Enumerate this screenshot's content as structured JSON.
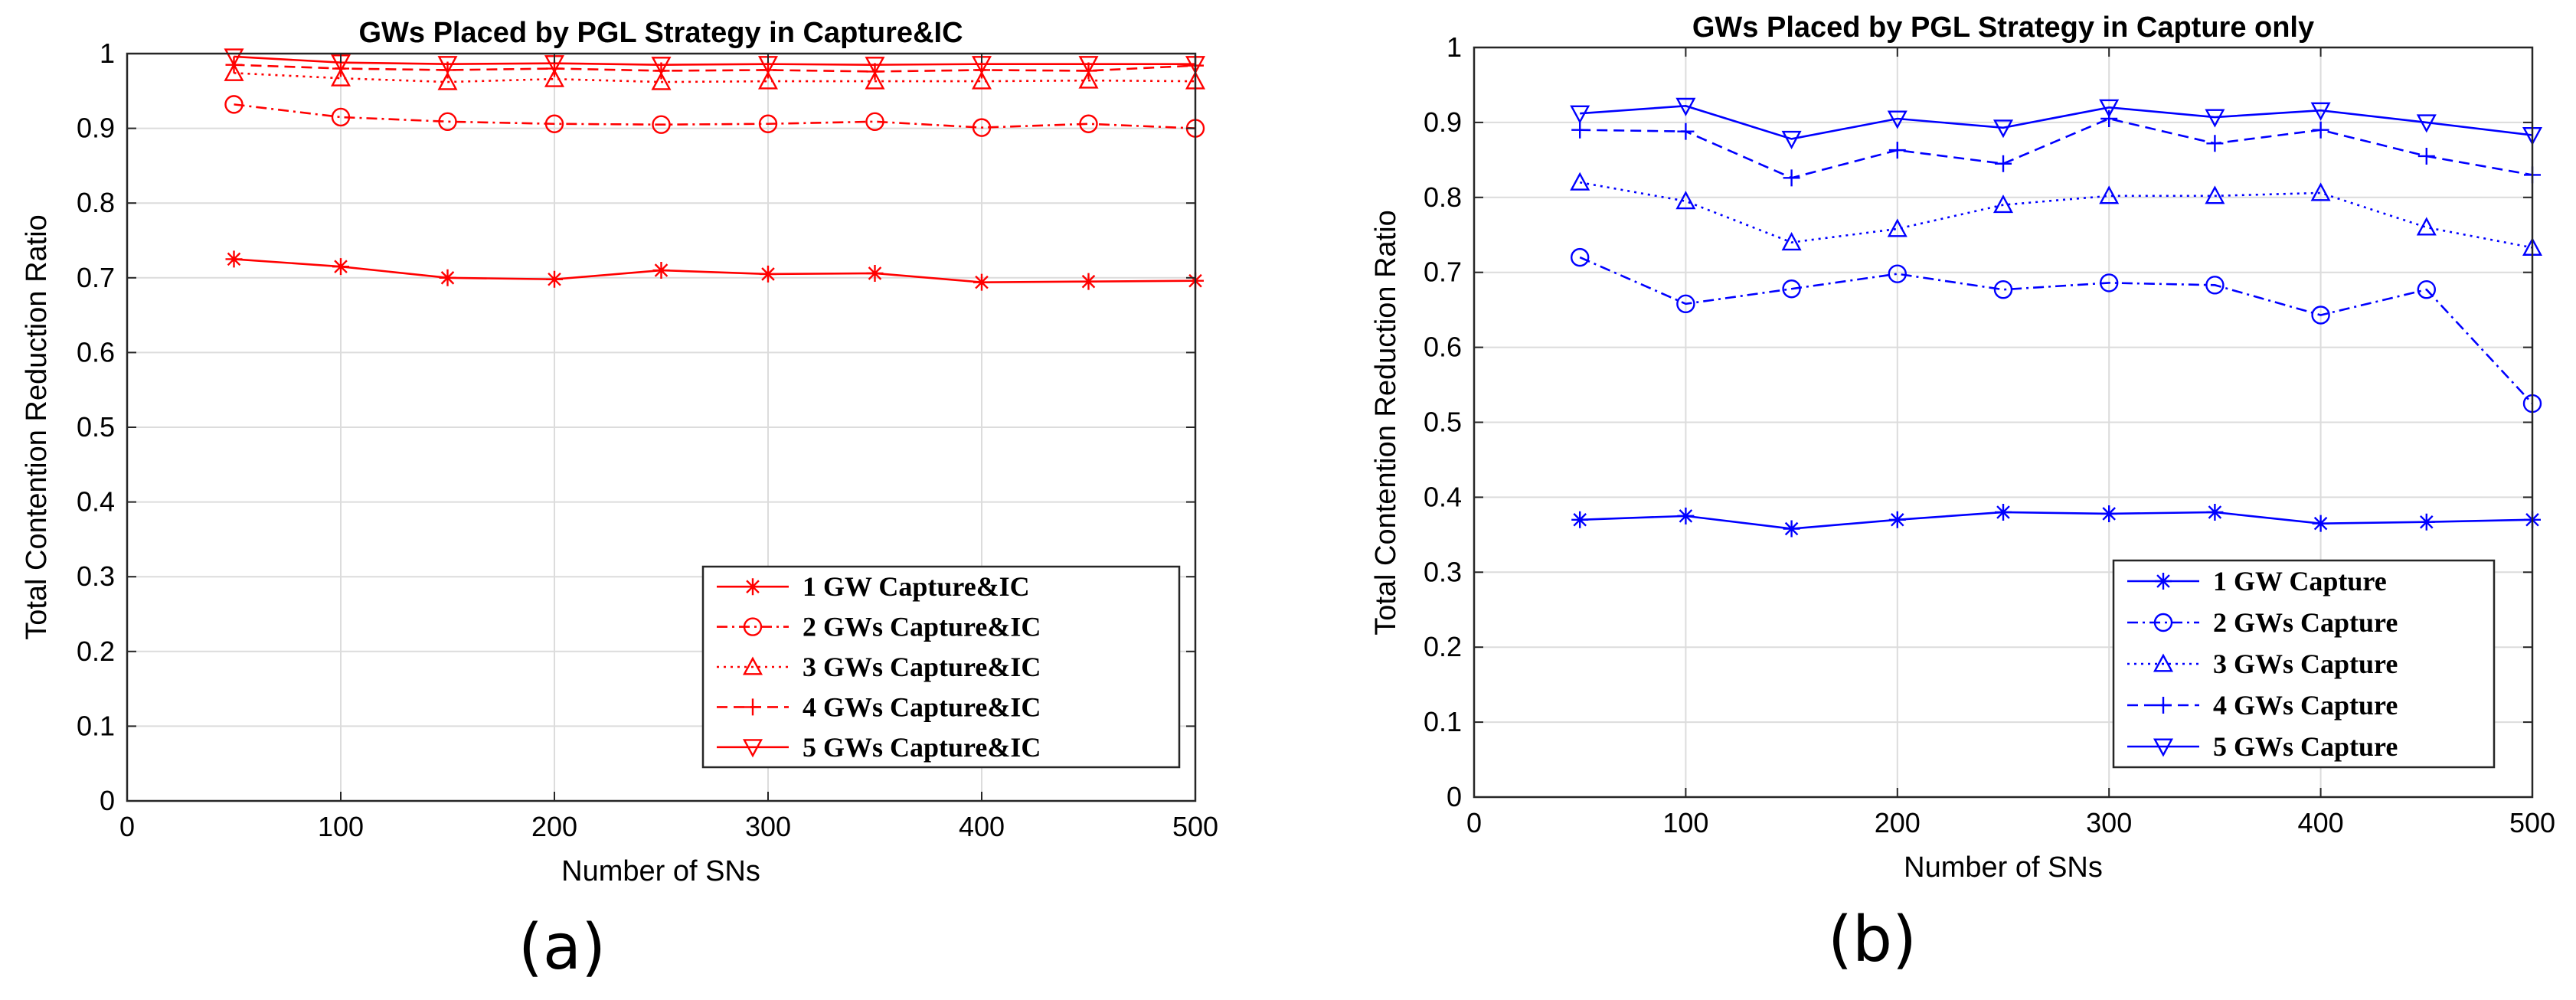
{
  "chart_data": [
    {
      "type": "line",
      "id": "a",
      "title": "GWs Placed by PGL Strategy in Capture&IC",
      "xlabel": "Number of SNs",
      "ylabel": "Total Contention Reduction Ratio",
      "panel_label": "(a)",
      "xlim": [
        0,
        500
      ],
      "ylim": [
        0,
        1
      ],
      "xticks": [
        "0",
        "100",
        "200",
        "300",
        "400",
        "500"
      ],
      "yticks": [
        "0",
        "0.1",
        "0.2",
        "0.3",
        "0.4",
        "0.5",
        "0.6",
        "0.7",
        "0.8",
        "0.9",
        "1"
      ],
      "grid": true,
      "legend_position": "bottom-right",
      "color": "#ff0000",
      "x": [
        50,
        100,
        150,
        200,
        250,
        300,
        350,
        400,
        450,
        500
      ],
      "series": [
        {
          "name": "1 GW Capture&IC",
          "marker": "star",
          "dash": "solid",
          "values": [
            0.725,
            0.715,
            0.7,
            0.698,
            0.71,
            0.705,
            0.706,
            0.694,
            0.695,
            0.696
          ]
        },
        {
          "name": "2 GWs Capture&IC",
          "marker": "circle",
          "dash": "dashdot",
          "values": [
            0.932,
            0.915,
            0.909,
            0.906,
            0.905,
            0.906,
            0.909,
            0.901,
            0.906,
            0.9
          ]
        },
        {
          "name": "3 GWs Capture&IC",
          "marker": "triangle-up",
          "dash": "dotted",
          "values": [
            0.974,
            0.967,
            0.962,
            0.966,
            0.962,
            0.963,
            0.963,
            0.963,
            0.964,
            0.963
          ]
        },
        {
          "name": "4 GWs Capture&IC",
          "marker": "plus",
          "dash": "dashed",
          "values": [
            0.985,
            0.98,
            0.978,
            0.98,
            0.977,
            0.978,
            0.976,
            0.978,
            0.977,
            0.984
          ]
        },
        {
          "name": "5 GWs Capture&IC",
          "marker": "triangle-down",
          "dash": "solid",
          "values": [
            0.996,
            0.988,
            0.986,
            0.987,
            0.985,
            0.986,
            0.985,
            0.986,
            0.986,
            0.986
          ]
        }
      ]
    },
    {
      "type": "line",
      "id": "b",
      "title": "GWs Placed by PGL Strategy in Capture only",
      "xlabel": "Number of SNs",
      "ylabel": "Total Contention Reduction Ratio",
      "panel_label": "(b)",
      "xlim": [
        0,
        500
      ],
      "ylim": [
        0,
        1
      ],
      "xticks": [
        "0",
        "100",
        "200",
        "300",
        "400",
        "500"
      ],
      "yticks": [
        "0",
        "0.1",
        "0.2",
        "0.3",
        "0.4",
        "0.5",
        "0.6",
        "0.7",
        "0.8",
        "0.9",
        "1"
      ],
      "grid": true,
      "legend_position": "bottom-right",
      "color": "#0000ff",
      "x": [
        50,
        100,
        150,
        200,
        250,
        300,
        350,
        400,
        450,
        500
      ],
      "series": [
        {
          "name": "1 GW Capture",
          "marker": "star",
          "dash": "solid",
          "values": [
            0.37,
            0.375,
            0.358,
            0.37,
            0.38,
            0.378,
            0.38,
            0.365,
            0.367,
            0.37
          ]
        },
        {
          "name": "2 GWs Capture",
          "marker": "circle",
          "dash": "dashdot",
          "values": [
            0.72,
            0.658,
            0.678,
            0.698,
            0.677,
            0.686,
            0.683,
            0.643,
            0.677,
            0.525
          ]
        },
        {
          "name": "3 GWs Capture",
          "marker": "triangle-up",
          "dash": "dotted",
          "values": [
            0.82,
            0.795,
            0.74,
            0.758,
            0.79,
            0.802,
            0.802,
            0.806,
            0.76,
            0.733
          ]
        },
        {
          "name": "4 GWs Capture",
          "marker": "plus",
          "dash": "dashed",
          "values": [
            0.89,
            0.888,
            0.826,
            0.863,
            0.845,
            0.905,
            0.872,
            0.89,
            0.855,
            0.83
          ]
        },
        {
          "name": "5 GWs Capture",
          "marker": "triangle-down",
          "dash": "solid",
          "values": [
            0.912,
            0.922,
            0.878,
            0.905,
            0.893,
            0.92,
            0.907,
            0.916,
            0.9,
            0.883
          ]
        }
      ]
    }
  ]
}
